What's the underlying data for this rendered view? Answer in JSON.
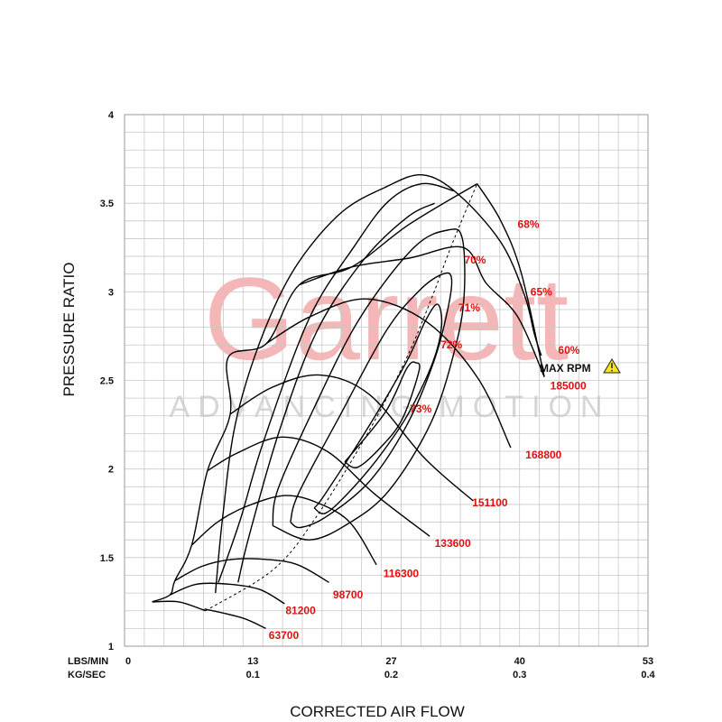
{
  "chart_data": {
    "type": "line",
    "title": "",
    "xlabel": "CORRECTED AIR FLOW",
    "ylabel": "PRESSURE RATIO",
    "x_axis_units": [
      "LBS/MIN",
      "KG/SEC"
    ],
    "x_ticks_lbs": [
      "0",
      "13",
      "27",
      "40",
      "53"
    ],
    "x_ticks_kg": [
      "0.1",
      "0.2",
      "0.3",
      "0.4"
    ],
    "y_ticks": [
      "1",
      "1.5",
      "2",
      "2.5",
      "3",
      "3.5",
      "4"
    ],
    "xlim": [
      0,
      53
    ],
    "ylim": [
      1,
      4
    ],
    "grid": true,
    "watermark": {
      "brand": "Garrett",
      "tagline": "ADVANCING MOTION"
    },
    "max_rpm": {
      "label": "MAX RPM",
      "icon": "warning-icon",
      "speed": "185000"
    },
    "speed_lines": [
      {
        "rpm": "63700",
        "label_at": [
          14.6,
          1.06
        ],
        "points": [
          [
            8.1,
            1.21
          ],
          [
            11.9,
            1.16
          ],
          [
            14.3,
            1.1
          ]
        ]
      },
      {
        "rpm": "81200",
        "label_at": [
          16.3,
          1.2
        ],
        "points": [
          [
            4.6,
            1.29
          ],
          [
            7.3,
            1.35
          ],
          [
            10.6,
            1.35
          ],
          [
            13.7,
            1.32
          ],
          [
            16.2,
            1.24
          ]
        ]
      },
      {
        "rpm": "98700",
        "label_at": [
          21.1,
          1.29
        ],
        "points": [
          [
            5.1,
            1.37
          ],
          [
            7.8,
            1.45
          ],
          [
            10.9,
            1.49
          ],
          [
            14.3,
            1.49
          ],
          [
            17.5,
            1.46
          ],
          [
            20.7,
            1.36
          ]
        ]
      },
      {
        "rpm": "116300",
        "label_at": [
          26.2,
          1.41
        ],
        "points": [
          [
            6.8,
            1.57
          ],
          [
            9.4,
            1.7
          ],
          [
            12.4,
            1.79
          ],
          [
            16.2,
            1.85
          ],
          [
            19.5,
            1.81
          ],
          [
            22.8,
            1.7
          ],
          [
            25.5,
            1.46
          ]
        ]
      },
      {
        "rpm": "133600",
        "label_at": [
          31.4,
          1.58
        ],
        "points": [
          [
            8.4,
            1.99
          ],
          [
            11.4,
            2.09
          ],
          [
            15.9,
            2.18
          ],
          [
            20.5,
            2.1
          ],
          [
            25.3,
            1.86
          ],
          [
            30.9,
            1.62
          ]
        ]
      },
      {
        "rpm": "151100",
        "label_at": [
          35.2,
          1.81
        ],
        "points": [
          [
            10.7,
            2.31
          ],
          [
            14.9,
            2.46
          ],
          [
            19.8,
            2.53
          ],
          [
            24.8,
            2.42
          ],
          [
            30.4,
            2.06
          ],
          [
            35.3,
            1.82
          ]
        ]
      },
      {
        "rpm": "168800",
        "label_at": [
          40.6,
          2.08
        ],
        "points": [
          [
            14.4,
            2.71
          ],
          [
            18.8,
            2.86
          ],
          [
            24.5,
            2.96
          ],
          [
            30.6,
            2.83
          ],
          [
            35.8,
            2.51
          ],
          [
            39.1,
            2.12
          ]
        ]
      },
      {
        "rpm": "185000",
        "label_at": [
          43.1,
          2.47
        ],
        "points": [
          [
            17.7,
            3.04
          ],
          [
            23.0,
            3.14
          ],
          [
            28.8,
            3.19
          ],
          [
            34.3,
            3.25
          ],
          [
            36.6,
            3.05
          ],
          [
            39.8,
            2.86
          ],
          [
            42.5,
            2.52
          ]
        ]
      }
    ],
    "efficiency_islands": [
      {
        "label": "73%",
        "label_at": [
          28.9,
          2.34
        ],
        "points": [
          [
            22.3,
            2.04
          ],
          [
            26.4,
            2.32
          ],
          [
            28.6,
            2.57
          ],
          [
            29.5,
            2.6
          ],
          [
            29.8,
            2.55
          ],
          [
            28.1,
            2.28
          ],
          [
            25.9,
            2.12
          ],
          [
            23.6,
            2.01
          ],
          [
            22.3,
            2.04
          ]
        ]
      },
      {
        "label": "72%",
        "label_at": [
          32.0,
          2.7
        ],
        "points": [
          [
            19.2,
            1.78
          ],
          [
            20.2,
            1.85
          ],
          [
            24.5,
            2.22
          ],
          [
            28.5,
            2.6
          ],
          [
            30.5,
            2.84
          ],
          [
            31.7,
            2.93
          ],
          [
            32.1,
            2.81
          ],
          [
            31.2,
            2.6
          ],
          [
            28.6,
            2.3
          ],
          [
            25.5,
            2.05
          ],
          [
            22.4,
            1.85
          ],
          [
            20.3,
            1.75
          ],
          [
            19.2,
            1.78
          ]
        ]
      },
      {
        "label": "71%",
        "label_at": [
          33.8,
          2.91
        ],
        "points": [
          [
            16.8,
            1.7
          ],
          [
            17.6,
            1.86
          ],
          [
            21.7,
            2.29
          ],
          [
            26.5,
            2.78
          ],
          [
            29.9,
            3.01
          ],
          [
            32.2,
            3.1
          ],
          [
            33.1,
            3.08
          ],
          [
            32.8,
            2.92
          ],
          [
            31.4,
            2.62
          ],
          [
            28.6,
            2.25
          ],
          [
            24.8,
            1.93
          ],
          [
            20.4,
            1.73
          ],
          [
            17.8,
            1.67
          ],
          [
            16.8,
            1.7
          ]
        ]
      },
      {
        "label": "70%",
        "label_at": [
          34.4,
          3.18
        ],
        "points": [
          [
            15.0,
            1.68
          ],
          [
            15.5,
            1.88
          ],
          [
            18.9,
            2.31
          ],
          [
            23.7,
            2.84
          ],
          [
            29.3,
            3.25
          ],
          [
            32.9,
            3.35
          ],
          [
            34.2,
            3.3
          ],
          [
            34.4,
            3.0
          ],
          [
            33.6,
            2.71
          ],
          [
            31.1,
            2.27
          ],
          [
            26.8,
            1.88
          ],
          [
            22.6,
            1.69
          ],
          [
            18.7,
            1.6
          ],
          [
            15.0,
            1.68
          ]
        ]
      },
      {
        "label": "68%",
        "label_at": [
          39.8,
          3.38
        ],
        "points": [
          [
            11.5,
            1.36
          ],
          [
            12.6,
            1.62
          ],
          [
            15.7,
            2.22
          ],
          [
            19.5,
            2.78
          ],
          [
            24.2,
            3.18
          ],
          [
            28.6,
            3.42
          ],
          [
            31.4,
            3.5
          ]
        ]
      },
      {
        "label": "65%",
        "label_at": [
          41.1,
          3.0
        ],
        "points": [
          [
            9.5,
            1.36
          ],
          [
            11.7,
            1.71
          ],
          [
            14.1,
            2.16
          ],
          [
            18.7,
            2.85
          ],
          [
            23.3,
            3.26
          ],
          [
            26.7,
            3.51
          ],
          [
            30.1,
            3.61
          ],
          [
            33.3,
            3.57
          ]
        ]
      },
      {
        "label": "60%",
        "label_at": [
          43.9,
          2.67
        ],
        "points": [
          [
            9.2,
            1.3
          ],
          [
            9.9,
            1.71
          ],
          [
            11.2,
            2.25
          ],
          [
            13.8,
            2.73
          ],
          [
            17.2,
            3.13
          ],
          [
            21.8,
            3.44
          ],
          [
            26.4,
            3.59
          ],
          [
            30.2,
            3.66
          ],
          [
            33.8,
            3.55
          ],
          [
            38.1,
            3.28
          ],
          [
            40.5,
            2.98
          ],
          [
            41.5,
            2.76
          ],
          [
            42.2,
            2.64
          ]
        ]
      }
    ]
  }
}
